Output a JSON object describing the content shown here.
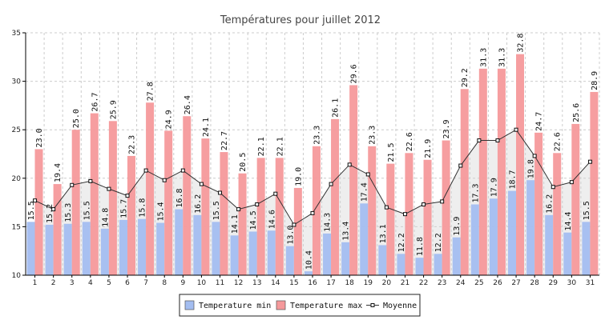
{
  "chart_data": {
    "type": "bar",
    "title": "Températures pour juillet 2012",
    "xlabel": "",
    "ylabel": "",
    "ylim": [
      10,
      35
    ],
    "yticks": [
      10,
      15,
      20,
      25,
      30,
      35
    ],
    "grid": true,
    "legend_position": "bottom-center",
    "categories": [
      "1",
      "2",
      "3",
      "4",
      "5",
      "6",
      "7",
      "8",
      "9",
      "10",
      "11",
      "12",
      "13",
      "14",
      "15",
      "16",
      "17",
      "18",
      "19",
      "20",
      "21",
      "22",
      "23",
      "24",
      "25",
      "26",
      "27",
      "28",
      "29",
      "30",
      "31"
    ],
    "series": [
      {
        "name": "Temperature min",
        "kind": "bar",
        "color": "#a3bdf0",
        "values": [
          15.5,
          15.2,
          15.3,
          15.5,
          14.8,
          15.7,
          15.8,
          15.4,
          16.8,
          16.2,
          15.5,
          14.1,
          14.5,
          14.6,
          13.0,
          10.4,
          14.3,
          13.4,
          17.4,
          13.1,
          12.2,
          11.8,
          12.2,
          13.9,
          17.3,
          17.9,
          18.7,
          19.8,
          16.2,
          14.4,
          15.5
        ]
      },
      {
        "name": "Temperature max",
        "kind": "bar",
        "color": "#f5999b",
        "values": [
          23.0,
          19.4,
          25.0,
          26.7,
          25.9,
          22.3,
          27.8,
          24.9,
          26.4,
          24.1,
          22.7,
          20.5,
          22.1,
          22.1,
          19.0,
          23.3,
          26.1,
          29.6,
          23.3,
          21.5,
          22.6,
          21.9,
          23.9,
          29.2,
          31.3,
          31.3,
          32.8,
          24.7,
          22.6,
          25.6,
          28.9
        ]
      },
      {
        "name": "Moyenne",
        "kind": "line-area",
        "color": "#333333",
        "fill": "#d4d4d4",
        "values": [
          17.7,
          16.8,
          19.3,
          19.7,
          18.9,
          18.2,
          20.8,
          19.8,
          20.8,
          19.4,
          18.5,
          16.8,
          17.3,
          18.4,
          15.2,
          16.4,
          19.4,
          21.4,
          20.4,
          17.0,
          16.3,
          17.3,
          17.6,
          21.3,
          23.9,
          23.9,
          25.0,
          22.3,
          19.1,
          19.6,
          21.7
        ]
      }
    ]
  }
}
